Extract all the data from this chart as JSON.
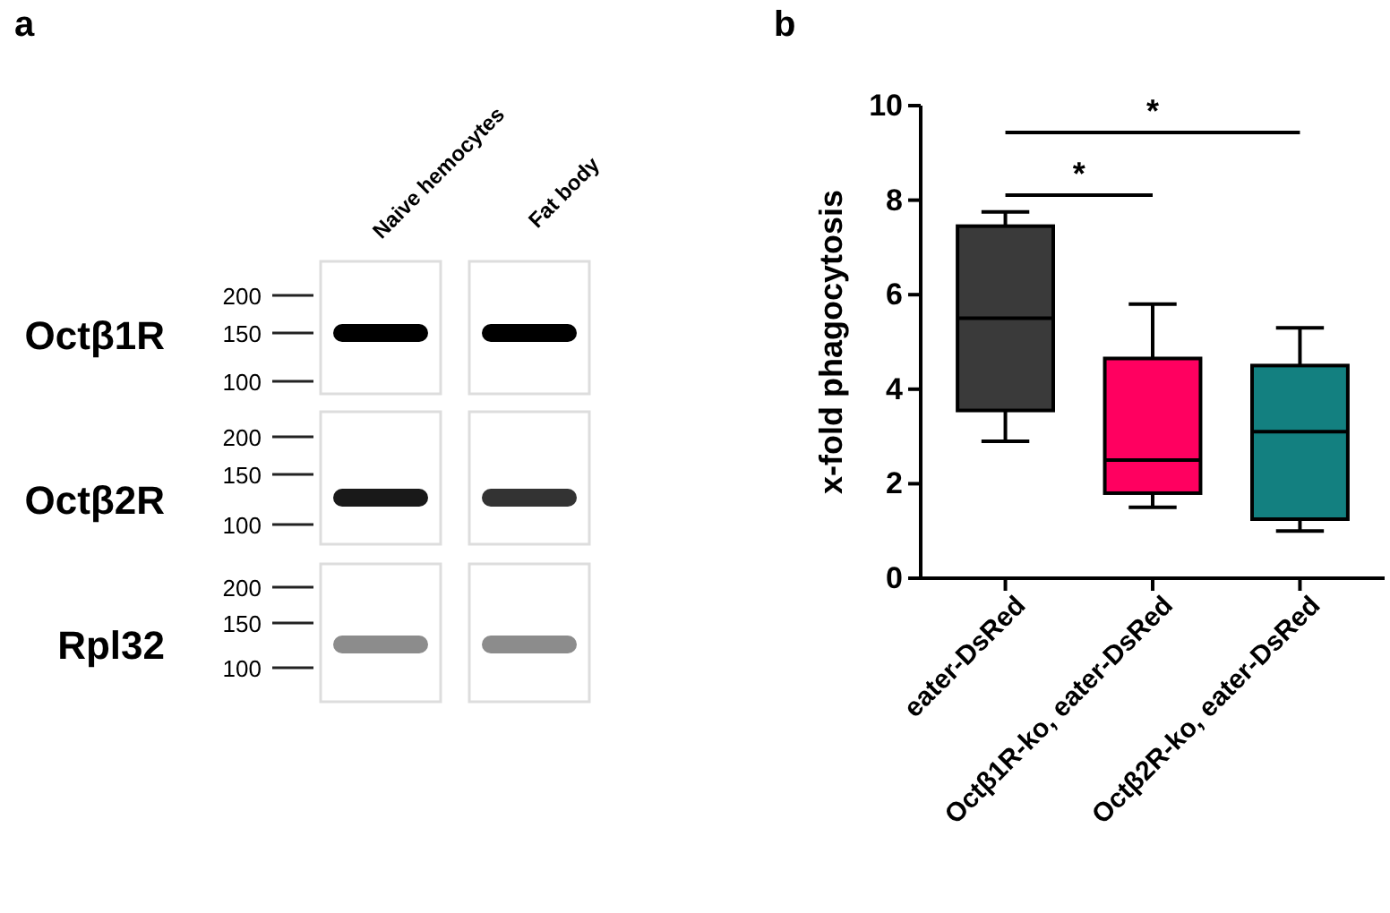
{
  "chart_data": [
    {
      "type": "other",
      "title": "a",
      "annotations": [
        "Naive hemocytes",
        "Fat body",
        "Octβ1R",
        "Octβ2R",
        "Rpl32",
        "200",
        "150",
        "100",
        "200",
        "150",
        "100",
        "200",
        "150",
        "100"
      ]
    },
    {
      "type": "box",
      "title": "b",
      "ylabel": "x-fold phagocytosis",
      "categories": [
        "eater-DsRed",
        "Octβ1R-ko, eater-DsRed",
        "Octβ2R-ko, eater-DsRed"
      ],
      "colors": [
        "#3a3a3a",
        "#ff0060",
        "#138080"
      ],
      "boxes": [
        {
          "low": 2.9,
          "q1": 3.55,
          "median": 5.5,
          "q3": 7.45,
          "high": 7.75
        },
        {
          "low": 1.5,
          "q1": 1.8,
          "median": 2.5,
          "q3": 4.65,
          "high": 5.8
        },
        {
          "low": 1.0,
          "q1": 1.25,
          "median": 3.1,
          "q3": 4.5,
          "high": 5.3
        }
      ],
      "ylim": [
        0,
        10
      ],
      "yticks": [
        0,
        2,
        4,
        6,
        8,
        10
      ],
      "annotations": [
        "*",
        "*"
      ]
    }
  ]
}
